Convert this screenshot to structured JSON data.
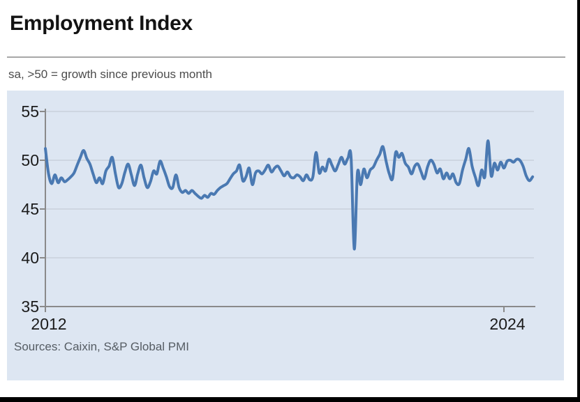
{
  "header": {
    "title": "Employment Index",
    "subtitle": "sa, >50 = growth since previous month"
  },
  "source_note": "Sources: Caixin, S&P Global PMI",
  "chart_data": {
    "type": "line",
    "title": "Employment Index",
    "subtitle": "sa, >50 = growth since previous month",
    "source": "Sources: Caixin, S&P Global PMI",
    "grid": true,
    "legend": "none",
    "x_axis": {
      "ticks": [
        {
          "label": "2012",
          "month_index": 0
        },
        {
          "label": "2024",
          "month_index": 144
        }
      ],
      "range_months": [
        0,
        154
      ]
    },
    "y_axis": {
      "ticks": [
        55,
        50,
        45,
        40,
        35
      ],
      "min": 35,
      "max": 55
    },
    "series": [
      {
        "name": "Employment Index",
        "start": "2012-01",
        "frequency": "monthly",
        "values": [
          51.2,
          48.6,
          47.6,
          48.5,
          47.7,
          48.2,
          47.8,
          48.0,
          48.3,
          48.7,
          49.5,
          50.3,
          51.0,
          50.2,
          49.6,
          48.6,
          47.7,
          48.2,
          47.6,
          48.9,
          49.4,
          50.3,
          48.6,
          47.2,
          47.6,
          48.8,
          49.6,
          48.5,
          47.4,
          48.6,
          49.5,
          48.2,
          47.2,
          47.8,
          48.9,
          48.6,
          49.9,
          49.2,
          48.3,
          47.3,
          47.2,
          48.5,
          47.2,
          46.7,
          46.9,
          46.6,
          46.9,
          46.6,
          46.3,
          46.1,
          46.4,
          46.2,
          46.6,
          46.5,
          46.9,
          47.2,
          47.4,
          47.6,
          48.1,
          48.6,
          48.9,
          49.5,
          47.9,
          48.3,
          49.2,
          47.5,
          48.7,
          48.9,
          48.6,
          49.0,
          49.5,
          48.8,
          49.2,
          49.4,
          48.9,
          48.4,
          48.8,
          48.3,
          48.2,
          48.5,
          48.3,
          47.9,
          48.5,
          48.0,
          48.3,
          50.8,
          48.7,
          49.3,
          48.9,
          50.1,
          49.5,
          48.9,
          49.6,
          50.3,
          49.6,
          50.2,
          50.3,
          40.9,
          48.7,
          47.5,
          49.1,
          48.2,
          49.0,
          49.3,
          50.0,
          50.6,
          51.4,
          49.9,
          48.6,
          48.1,
          50.8,
          50.3,
          50.7,
          49.7,
          49.3,
          48.6,
          49.4,
          49.6,
          48.8,
          48.1,
          49.3,
          50.0,
          49.6,
          48.7,
          49.1,
          48.1,
          48.7,
          48.1,
          48.6,
          47.7,
          47.6,
          49.0,
          50.1,
          51.2,
          49.4,
          48.3,
          47.4,
          49.0,
          48.3,
          52.0,
          48.4,
          49.7,
          49.0,
          49.8,
          49.2,
          49.9,
          50.0,
          49.8,
          50.1,
          50.0,
          49.4,
          48.4,
          47.9,
          48.3
        ]
      }
    ],
    "colors": {
      "line": "#4a79b2",
      "plot_bg": "#dde6f2",
      "grid": "#c9d1db",
      "axis": "#8a8a8a",
      "tick_text": "#1b1b1b",
      "title_text": "#131313",
      "subtitle_text": "#4c4c4c",
      "source_text": "#555c63"
    }
  }
}
